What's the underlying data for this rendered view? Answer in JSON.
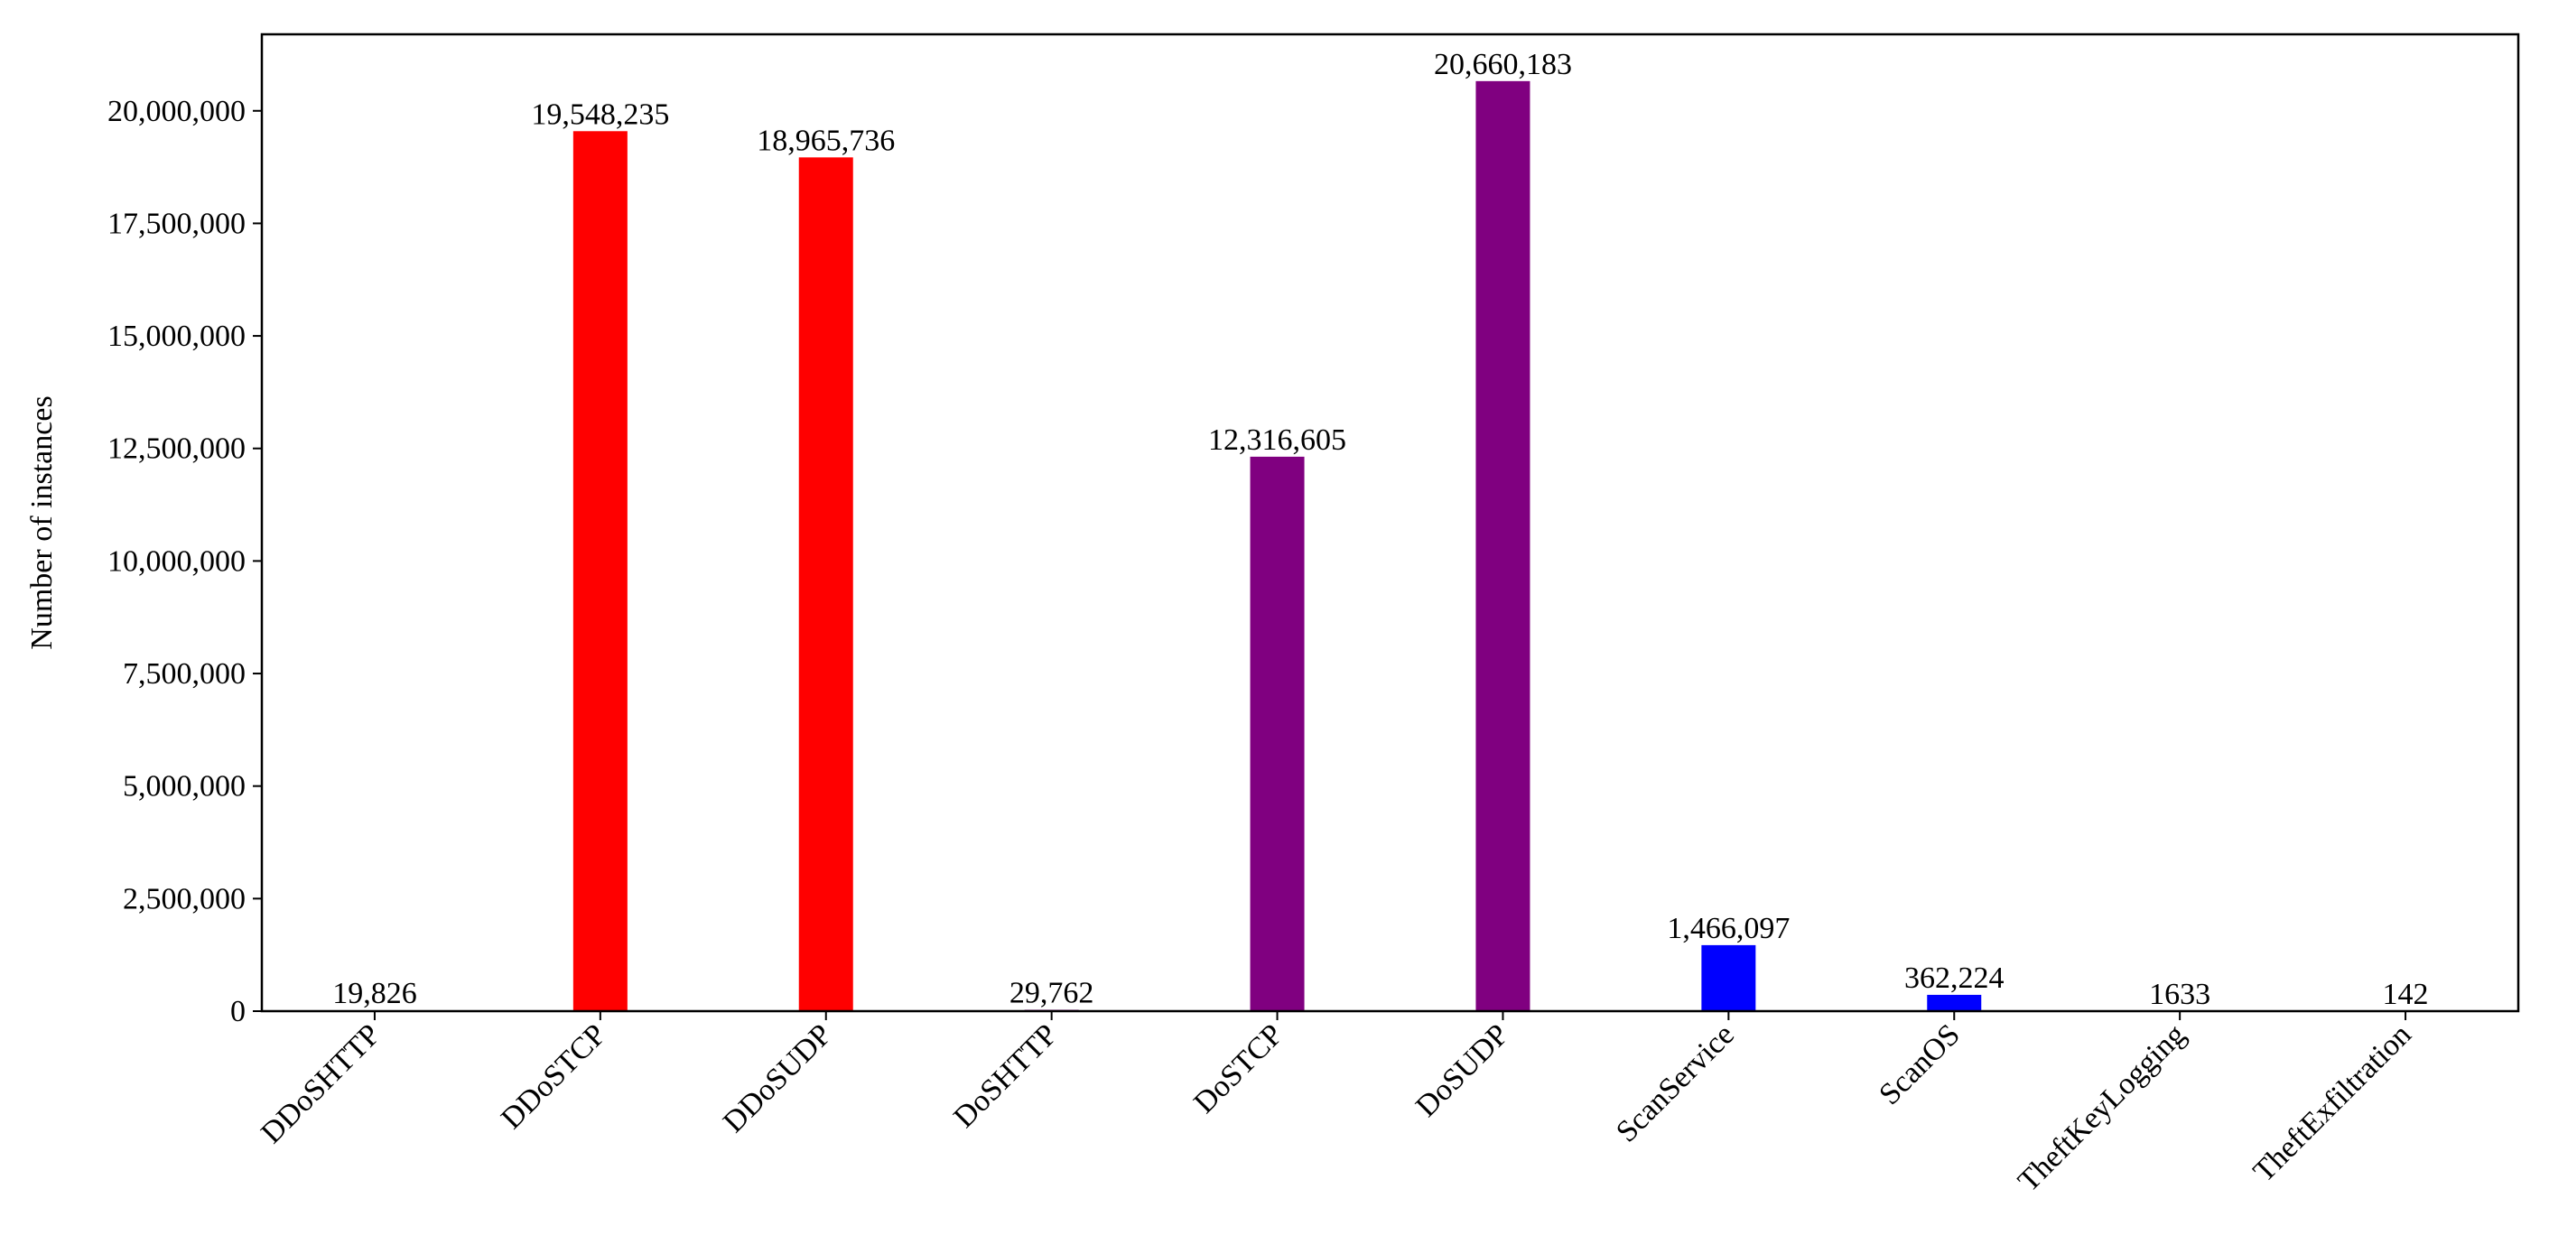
{
  "chart_data": {
    "type": "bar",
    "title": "",
    "xlabel": "",
    "ylabel": "Number of instances",
    "ylim": [
      0,
      21700000
    ],
    "yticks": [
      0,
      2500000,
      5000000,
      7500000,
      10000000,
      12500000,
      15000000,
      17500000,
      20000000
    ],
    "ytick_labels": [
      "0",
      "2,500,000",
      "5,000,000",
      "7,500,000",
      "10,000,000",
      "12,500,000",
      "15,000,000",
      "17,500,000",
      "20,000,000"
    ],
    "grid": false,
    "categories": [
      "DDoSHTTP",
      "DDoSTCP",
      "DDoSUDP",
      "DoSHTTP",
      "DoSTCP",
      "DoSUDP",
      "ScanService",
      "ScanOS",
      "TheftKeyLogging",
      "TheftExfiltration"
    ],
    "values": [
      19826,
      19548235,
      18965736,
      29762,
      12316605,
      20660183,
      1466097,
      362224,
      1633,
      142
    ],
    "value_labels": [
      "19,826",
      "19,548,235",
      "18,965,736",
      "29,762",
      "12,316,605",
      "20,660,183",
      "1,466,097",
      "362,224",
      "1633",
      "142"
    ],
    "colors": [
      "#ff0000",
      "#ff0000",
      "#ff0000",
      "#800080",
      "#800080",
      "#800080",
      "#0000ff",
      "#0000ff",
      "#0000ff",
      "#0000ff"
    ]
  }
}
